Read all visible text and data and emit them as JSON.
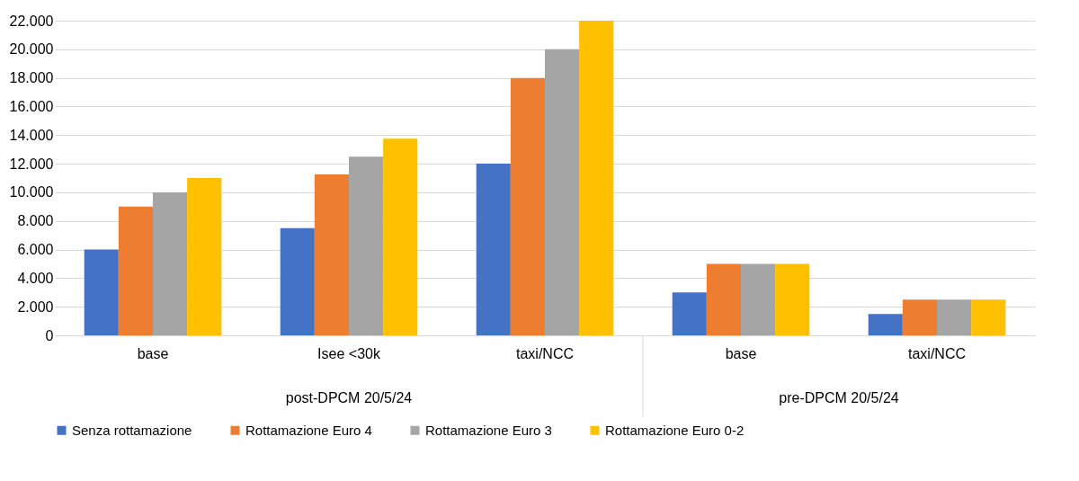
{
  "chart_data": {
    "type": "bar",
    "categories": [
      "base",
      "Isee <30k",
      "taxi/NCC",
      "base",
      "taxi/NCC"
    ],
    "series": [
      {
        "name": "Senza rottamazione",
        "color": "#4472c4",
        "values": [
          6000,
          7500,
          12000,
          3000,
          1500
        ]
      },
      {
        "name": "Rottamazione Euro 4",
        "color": "#ed7d31",
        "values": [
          9000,
          11250,
          18000,
          5000,
          2500
        ]
      },
      {
        "name": "Rottamazione Euro 3",
        "color": "#a5a5a5",
        "values": [
          10000,
          12500,
          20000,
          5000,
          2500
        ]
      },
      {
        "name": "Rottamazione Euro 0-2",
        "color": "#ffc000",
        "values": [
          11000,
          13750,
          22000,
          5000,
          2500
        ]
      }
    ],
    "ylim": [
      0,
      22000
    ],
    "yticks": [
      {
        "value": 0,
        "label": "0"
      },
      {
        "value": 2000,
        "label": "2.000"
      },
      {
        "value": 4000,
        "label": "4.000"
      },
      {
        "value": 6000,
        "label": "6.000"
      },
      {
        "value": 8000,
        "label": "8.000"
      },
      {
        "value": 10000,
        "label": "10.000"
      },
      {
        "value": 12000,
        "label": "12.000"
      },
      {
        "value": 14000,
        "label": "14.000"
      },
      {
        "value": 16000,
        "label": "16.000"
      },
      {
        "value": 18000,
        "label": "18.000"
      },
      {
        "value": 20000,
        "label": "20.000"
      },
      {
        "value": 22000,
        "label": "22.000"
      }
    ],
    "annotations": [
      "post-DPCM 20/5/24",
      "pre-DPCM 20/5/24"
    ],
    "grid": "y",
    "legend": "bottom"
  }
}
